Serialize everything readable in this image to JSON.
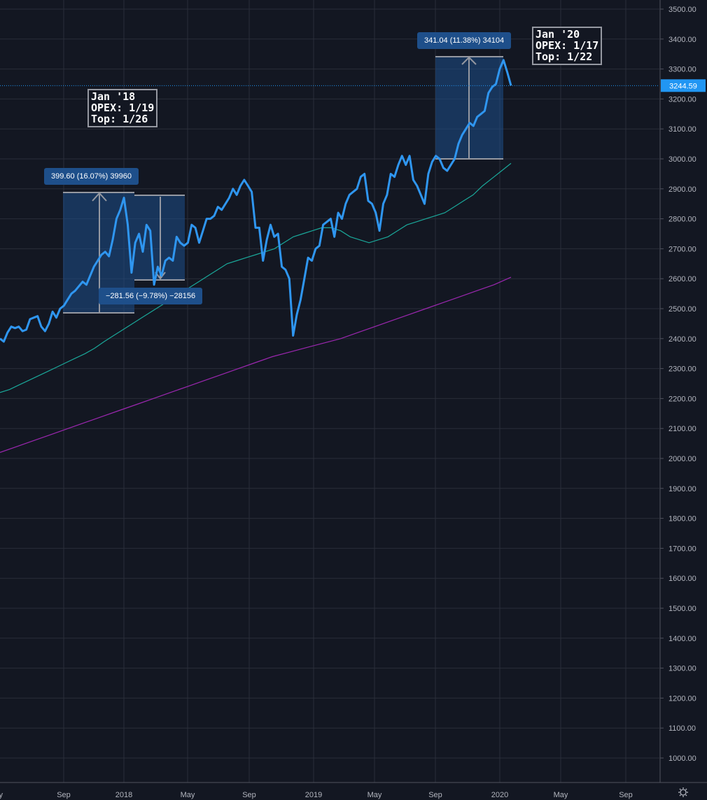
{
  "colors": {
    "background": "#131722",
    "grid": "#2a2e39",
    "price": "#2f96f0",
    "ma_short": "#1aa89a",
    "ma_long": "#9c27b0",
    "range_fill": "#1e4f8a",
    "last_price_badge": "#2196f3"
  },
  "price_axis": {
    "labels": [
      "3500.00",
      "3400.00",
      "3300.00",
      "3200.00",
      "3100.00",
      "3000.00",
      "2900.00",
      "2800.00",
      "2700.00",
      "2600.00",
      "2500.00",
      "2400.00",
      "2300.00",
      "2200.00",
      "2100.00",
      "2000.00",
      "1900.00",
      "1800.00",
      "1700.00",
      "1600.00",
      "1500.00",
      "1400.00",
      "1300.00",
      "1200.00",
      "1100.00",
      "1000.00"
    ],
    "last_price_label": "3244.59"
  },
  "time_axis": {
    "labels": [
      "ay",
      "Sep",
      "2018",
      "May",
      "Sep",
      "2019",
      "May",
      "Sep",
      "2020",
      "May",
      "Sep"
    ],
    "settings_icon": "gear-icon"
  },
  "annotations": {
    "note_2018": "Jan '18\nOPEX: 1/19\nTop: 1/26",
    "note_2020": "Jan '20\nOPEX: 1/17\nTop: 1/22",
    "range_up_2018": "399.60 (16.07%) 39960",
    "range_down_2018": "−281.56 (−9.78%) −28156",
    "range_up_2020": "341.04 (11.38%) 34104"
  },
  "chart_data": {
    "type": "line",
    "x_unit": "weeks",
    "ylim": [
      950,
      3530
    ],
    "grid": true,
    "last_value": 3244.59,
    "series": [
      {
        "values": [
          2400,
          2390,
          2420,
          2440,
          2435,
          2440,
          2425,
          2430,
          2465,
          2470,
          2475,
          2440,
          2425,
          2450,
          2490,
          2470,
          2500,
          2510,
          2530,
          2550,
          2560,
          2575,
          2590,
          2580,
          2610,
          2640,
          2660,
          2680,
          2690,
          2675,
          2730,
          2800,
          2830,
          2870,
          2780,
          2620,
          2720,
          2750,
          2690,
          2780,
          2760,
          2580,
          2640,
          2610,
          2660,
          2670,
          2660,
          2740,
          2720,
          2710,
          2720,
          2780,
          2770,
          2720,
          2760,
          2800,
          2800,
          2810,
          2840,
          2830,
          2850,
          2870,
          2900,
          2880,
          2910,
          2930,
          2910,
          2890,
          2770,
          2770,
          2660,
          2730,
          2780,
          2740,
          2750,
          2640,
          2630,
          2600,
          2410,
          2480,
          2530,
          2600,
          2670,
          2660,
          2700,
          2710,
          2780,
          2790,
          2800,
          2740,
          2820,
          2800,
          2850,
          2880,
          2890,
          2900,
          2940,
          2950,
          2860,
          2850,
          2820,
          2760,
          2850,
          2880,
          2950,
          2940,
          2980,
          3010,
          2980,
          3010,
          2930,
          2910,
          2880,
          2850,
          2950,
          2990,
          3010,
          3000,
          2970,
          2960,
          2980,
          3000,
          3050,
          3080,
          3100,
          3120,
          3110,
          3140,
          3150,
          3160,
          3220,
          3240,
          3250,
          3300,
          3330,
          3290,
          3244.59
        ]
      },
      {
        "values": [
          2220,
          2230,
          2245,
          2260,
          2275,
          2290,
          2305,
          2320,
          2335,
          2350,
          2368,
          2390,
          2410,
          2430,
          2450,
          2470,
          2490,
          2510,
          2530,
          2550,
          2570,
          2590,
          2610,
          2630,
          2650,
          2660,
          2670,
          2680,
          2690,
          2700,
          2720,
          2740,
          2750,
          2760,
          2770,
          2770,
          2760,
          2740,
          2730,
          2720,
          2730,
          2740,
          2760,
          2780,
          2790,
          2800,
          2810,
          2820,
          2840,
          2860,
          2880,
          2910,
          2935,
          2960,
          2985
        ]
      },
      {
        "values": [
          2020,
          2040,
          2060,
          2080,
          2100,
          2120,
          2140,
          2160,
          2180,
          2200,
          2220,
          2240,
          2260,
          2280,
          2300,
          2320,
          2340,
          2355,
          2370,
          2385,
          2400,
          2420,
          2440,
          2460,
          2480,
          2500,
          2520,
          2540,
          2560,
          2580,
          2605
        ]
      }
    ]
  }
}
